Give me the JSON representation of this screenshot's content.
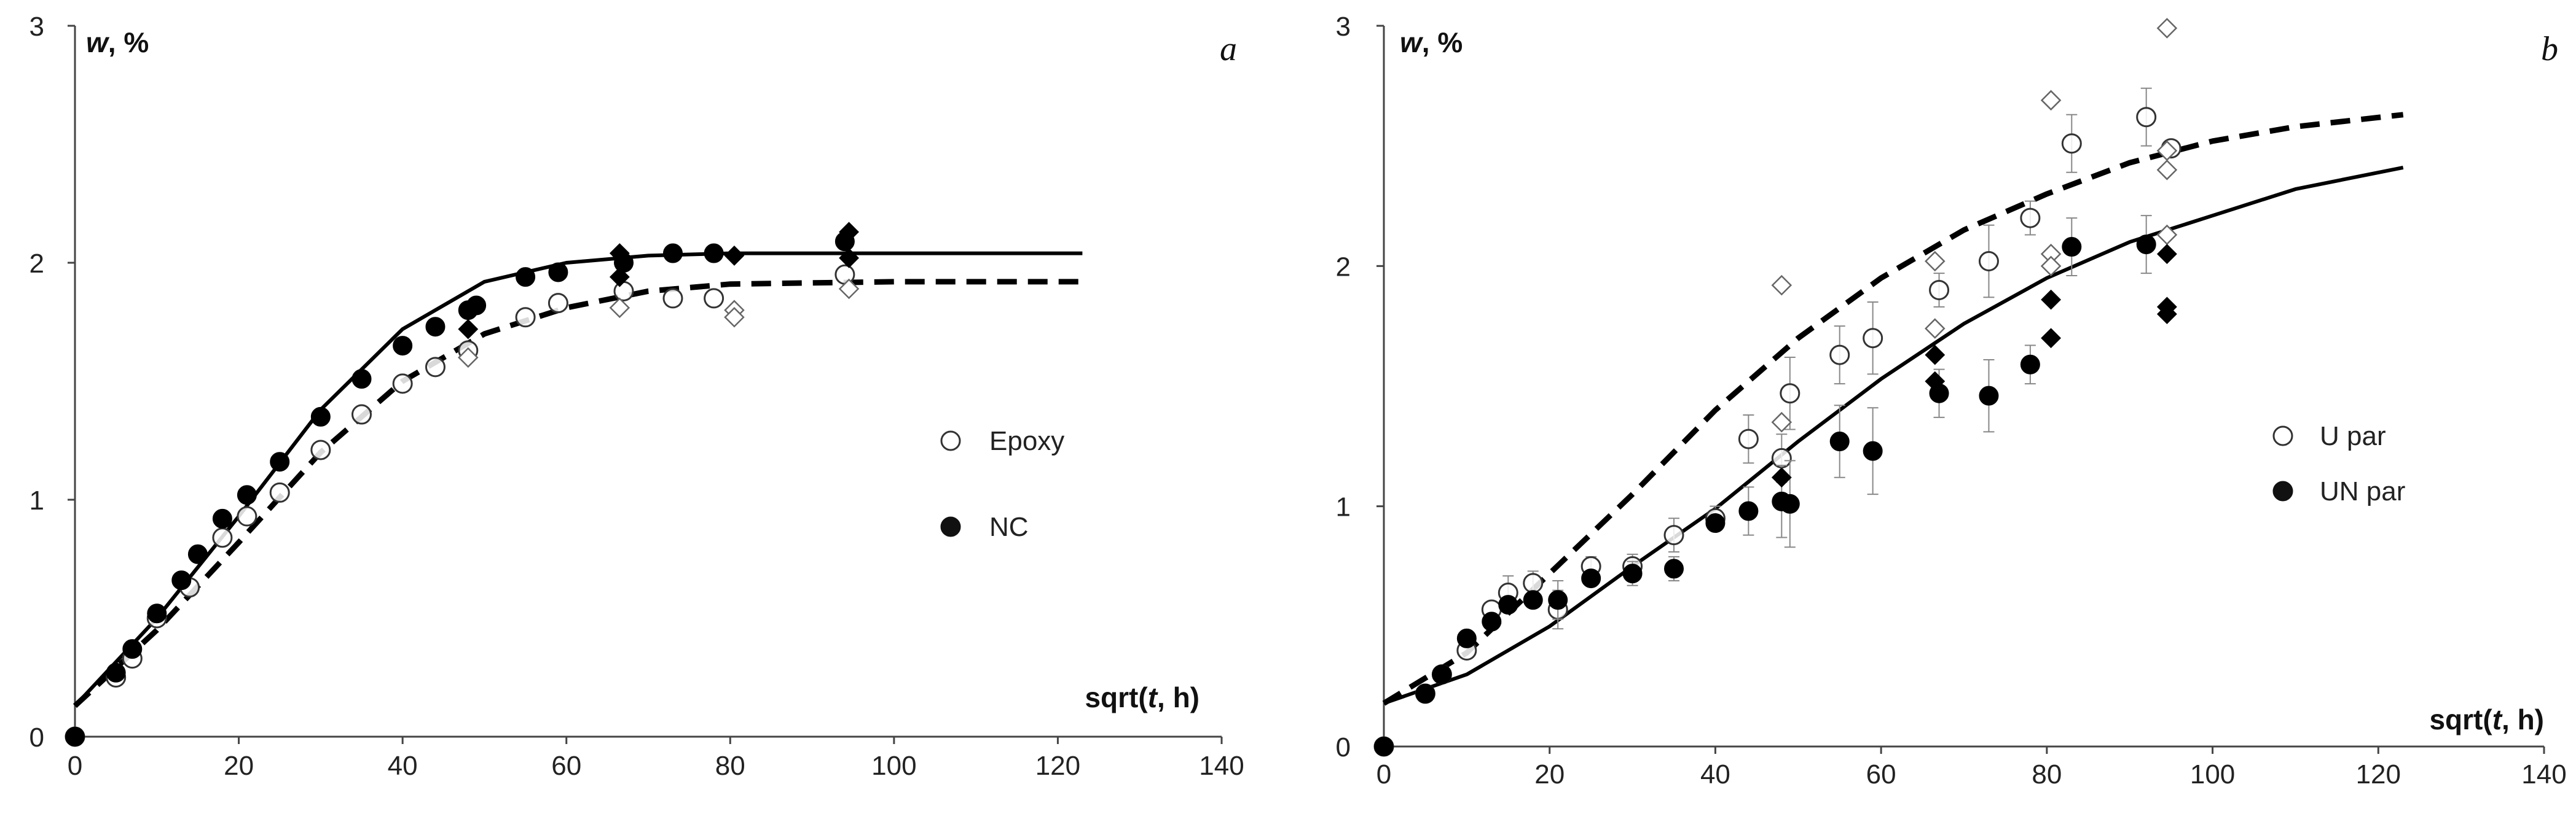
{
  "chart_data": [
    {
      "type": "scatter",
      "panel_label": "a",
      "ylabel": "w, %",
      "xlabel": "sqrt(t, h)",
      "xlim": [
        0,
        140
      ],
      "ylim": [
        0,
        3
      ],
      "xticks": [
        "0",
        "20",
        "40",
        "60",
        "80",
        "100",
        "120",
        "140"
      ],
      "yticks": [
        "0",
        "1",
        "2",
        "3"
      ],
      "legend": [
        "Epoxy",
        "NC"
      ],
      "series": [
        {
          "name": "Epoxy",
          "marker": "open-circle",
          "x": [
            0,
            5,
            7,
            10,
            14,
            18,
            21,
            25,
            30,
            35,
            40,
            44,
            48,
            55,
            59,
            67,
            73,
            78,
            94
          ],
          "y": [
            0,
            0.25,
            0.33,
            0.5,
            0.63,
            0.84,
            0.93,
            1.03,
            1.21,
            1.36,
            1.49,
            1.56,
            1.63,
            1.77,
            1.83,
            1.88,
            1.85,
            1.85,
            1.95
          ]
        },
        {
          "name": "NC",
          "marker": "filled-circle",
          "x": [
            0,
            5,
            7,
            10,
            13,
            15,
            18,
            21,
            25,
            30,
            35,
            40,
            44,
            48,
            49,
            55,
            59,
            67,
            73,
            78,
            94
          ],
          "y": [
            0,
            0.27,
            0.37,
            0.52,
            0.66,
            0.77,
            0.92,
            1.02,
            1.16,
            1.35,
            1.51,
            1.65,
            1.73,
            1.8,
            1.82,
            1.94,
            1.96,
            2.0,
            2.04,
            2.04,
            2.09
          ]
        },
        {
          "name": "open-diamonds",
          "marker": "open-diamond",
          "x": [
            48,
            66.5,
            80.5,
            80.5,
            94.5
          ],
          "y": [
            1.6,
            1.81,
            1.8,
            1.77,
            1.89
          ]
        },
        {
          "name": "filled-diamonds",
          "marker": "filled-diamond",
          "x": [
            48,
            66.5,
            66.5,
            80.5,
            94.5,
            94.5
          ],
          "y": [
            1.72,
            1.94,
            2.04,
            2.03,
            2.02,
            2.13
          ]
        },
        {
          "name": "fit-NC",
          "style": "solid",
          "x": [
            0,
            10,
            20,
            30,
            40,
            50,
            60,
            70,
            80,
            100,
            123
          ],
          "y": [
            0.13,
            0.5,
            0.93,
            1.38,
            1.72,
            1.92,
            2.0,
            2.03,
            2.04,
            2.04,
            2.04
          ]
        },
        {
          "name": "fit-Epoxy",
          "style": "dashed",
          "x": [
            0,
            10,
            20,
            30,
            40,
            50,
            60,
            70,
            80,
            100,
            123
          ],
          "y": [
            0.13,
            0.45,
            0.82,
            1.2,
            1.5,
            1.7,
            1.81,
            1.88,
            1.91,
            1.92,
            1.92
          ]
        }
      ]
    },
    {
      "type": "scatter",
      "panel_label": "b",
      "ylabel": "w, %",
      "xlabel": "sqrt(t, h)",
      "xlim": [
        0,
        140
      ],
      "ylim": [
        0,
        3
      ],
      "xticks": [
        "0",
        "20",
        "40",
        "60",
        "80",
        "100",
        "120",
        "140"
      ],
      "yticks": [
        "0",
        "1",
        "2",
        "3"
      ],
      "legend": [
        "U par",
        "UN par"
      ],
      "series": [
        {
          "name": "U par",
          "marker": "open-circle",
          "x": [
            0,
            5,
            7,
            10,
            13,
            15,
            18,
            21,
            25,
            30,
            35,
            40,
            44,
            48,
            49,
            55,
            59,
            67,
            73,
            78,
            83,
            92,
            95
          ],
          "y": [
            0,
            0.22,
            0.3,
            0.4,
            0.57,
            0.64,
            0.68,
            0.57,
            0.75,
            0.75,
            0.88,
            0.95,
            1.28,
            1.2,
            1.47,
            1.63,
            1.7,
            1.9,
            2.02,
            2.2,
            2.51,
            2.62,
            2.49
          ],
          "error": [
            0,
            0,
            0,
            0,
            0,
            0.07,
            0.05,
            0.08,
            0.04,
            0.05,
            0.07,
            0.05,
            0.1,
            0.1,
            0.15,
            0.12,
            0.15,
            0.07,
            0.15,
            0.07,
            0.12,
            0.12,
            0
          ]
        },
        {
          "name": "UN par",
          "marker": "filled-circle",
          "x": [
            0,
            5,
            7,
            10,
            13,
            15,
            18,
            21,
            25,
            30,
            35,
            40,
            44,
            48,
            49,
            55,
            59,
            67,
            73,
            78,
            83,
            92
          ],
          "y": [
            0,
            0.22,
            0.3,
            0.45,
            0.52,
            0.59,
            0.61,
            0.61,
            0.7,
            0.72,
            0.74,
            0.93,
            0.98,
            1.02,
            1.01,
            1.27,
            1.23,
            1.47,
            1.46,
            1.59,
            2.08,
            2.09
          ],
          "error": [
            0,
            0,
            0,
            0,
            0,
            0,
            0,
            0.08,
            0,
            0.05,
            0.05,
            0.03,
            0.1,
            0.15,
            0.18,
            0.15,
            0.18,
            0.1,
            0.15,
            0.08,
            0.12,
            0.12
          ]
        },
        {
          "name": "open-diamonds",
          "marker": "open-diamond",
          "x": [
            48,
            48,
            66.5,
            66.5,
            80.5,
            80.5,
            80.5,
            94.5,
            94.5,
            94.5,
            94.5
          ],
          "y": [
            1.92,
            1.35,
            2.02,
            1.74,
            2.69,
            2.05,
            2.0,
            2.99,
            2.4,
            2.13,
            2.48
          ]
        },
        {
          "name": "filled-diamonds",
          "marker": "filled-diamond",
          "x": [
            48,
            66.5,
            66.5,
            80.5,
            80.5,
            94.5,
            94.5,
            94.5
          ],
          "y": [
            1.12,
            1.52,
            1.63,
            1.7,
            1.86,
            2.05,
            1.83,
            1.8
          ]
        },
        {
          "name": "fit-UN",
          "style": "solid",
          "x": [
            0,
            10,
            20,
            30,
            40,
            50,
            60,
            70,
            80,
            90,
            100,
            110,
            123
          ],
          "y": [
            0.18,
            0.3,
            0.5,
            0.75,
            0.99,
            1.27,
            1.53,
            1.76,
            1.95,
            2.1,
            2.21,
            2.32,
            2.41
          ]
        },
        {
          "name": "fit-U",
          "style": "dashed",
          "x": [
            0,
            10,
            20,
            30,
            40,
            50,
            60,
            70,
            80,
            90,
            100,
            110,
            123
          ],
          "y": [
            0.18,
            0.39,
            0.72,
            1.05,
            1.4,
            1.7,
            1.95,
            2.15,
            2.3,
            2.43,
            2.52,
            2.58,
            2.63
          ]
        }
      ]
    }
  ]
}
